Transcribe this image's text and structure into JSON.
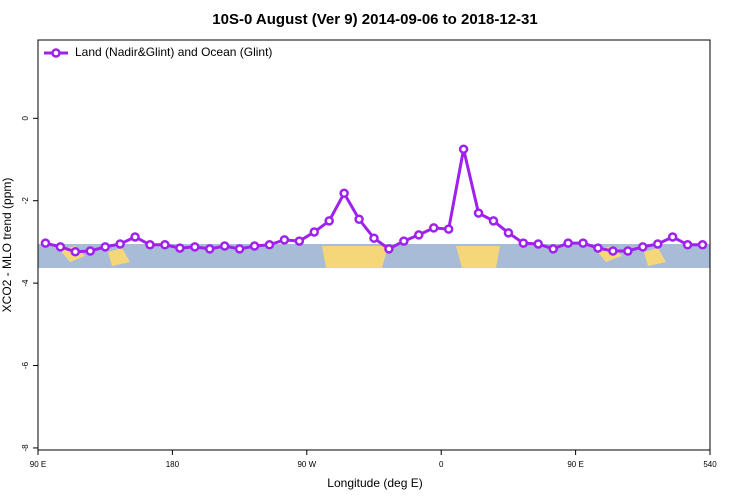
{
  "chart_data": {
    "type": "line",
    "title": "10S-0 August (Ver 9)   2014-09-06 to 2018-12-31",
    "x_label": "Longitude (deg E)",
    "y_label": "XCO2 - MLO trend (ppm)",
    "x": [
      95,
      105,
      115,
      125,
      135,
      145,
      155,
      165,
      175,
      185,
      195,
      205,
      215,
      225,
      235,
      245,
      255,
      265,
      275,
      285,
      295,
      305,
      315,
      325,
      335,
      345,
      355,
      365,
      375,
      385,
      395,
      405,
      415,
      425,
      435,
      445,
      455,
      465,
      475,
      485,
      495,
      505,
      515,
      525,
      535
    ],
    "series": [
      {
        "name": "Land (Nadir&Glint) and Ocean (Glint)",
        "color": "#a020f0",
        "values": [
          -3.03,
          -3.12,
          -3.24,
          -3.22,
          -3.12,
          -3.05,
          -2.88,
          -3.07,
          -3.07,
          -3.15,
          -3.12,
          -3.17,
          -3.1,
          -3.17,
          -3.1,
          -3.07,
          -2.95,
          -2.98,
          -2.76,
          -2.49,
          -1.82,
          -2.45,
          -2.91,
          -3.17,
          -2.98,
          -2.83,
          -2.66,
          -2.69,
          -0.75,
          -2.3,
          -2.49,
          -2.78,
          -3.03,
          -3.05,
          -3.17,
          -3.03,
          -3.03,
          -3.15,
          -3.22,
          -3.22,
          -3.12,
          -3.05,
          -2.88,
          -3.07,
          -3.07
        ]
      }
    ],
    "xlim": [
      90,
      540
    ],
    "xticks": [
      {
        "value": 90,
        "label": "90 E"
      },
      180,
      {
        "value": 270,
        "label": "90 W"
      },
      {
        "value": 360,
        "label": "0"
      },
      {
        "value": 450,
        "label": "90 E"
      },
      540
    ],
    "ylim": [
      -8.05,
      1.9
    ],
    "yticks": [
      0,
      -2,
      -4,
      -6,
      -8
    ],
    "legend": "upper left"
  }
}
